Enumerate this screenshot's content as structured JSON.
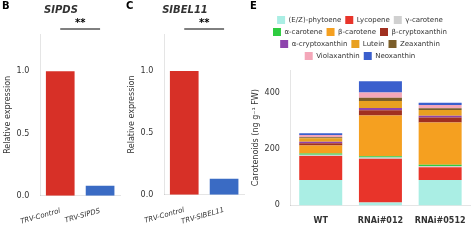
{
  "chart_data": [
    {
      "type": "bar",
      "title": "SIPDS",
      "categories": [
        "TRV-Control",
        "TRV-SIPDS"
      ],
      "values": [
        1.0,
        0.08
      ],
      "colors": [
        "#d73027",
        "#3a6bc4"
      ],
      "ylabel": "Relative expression",
      "ylim": [
        0,
        1.3
      ],
      "yticks": [
        {
          "value": 0,
          "label": "0.0"
        },
        0.5,
        {
          "value": 1,
          "label": "1.0"
        }
      ],
      "grid": false,
      "annotations": [
        "B",
        "**"
      ]
    },
    {
      "type": "bar",
      "title": "SIBEL11",
      "categories": [
        "TRV-Control",
        "TRV-SIBEL11"
      ],
      "values": [
        1.0,
        0.13
      ],
      "colors": [
        "#d73027",
        "#3a6bc4"
      ],
      "ylabel": "Relative expression",
      "ylim": [
        0,
        1.3
      ],
      "yticks": [
        {
          "value": 0,
          "label": "0.0"
        },
        0.5,
        {
          "value": 1,
          "label": "1.0"
        }
      ],
      "grid": false,
      "annotations": [
        "C",
        "**"
      ]
    },
    {
      "type": "bar",
      "stacked": true,
      "categories": [
        "WT",
        "RNAi#012",
        "RNAi#0512"
      ],
      "ylabel": "Carotenoids (ng g⁻¹ FW)",
      "ylim": [
        0,
        480
      ],
      "yticks": [
        0,
        200,
        400
      ],
      "grid": false,
      "legend": "top",
      "series": [
        {
          "name": "(E/Z)-phytoene",
          "color": "#aaeee4",
          "values": [
            90,
            10,
            90
          ]
        },
        {
          "name": "Lycopene",
          "color": "#e8342a",
          "values": [
            85,
            155,
            45
          ]
        },
        {
          "name": "γ-carotene",
          "color": "#d0d0d0",
          "values": [
            5,
            5,
            5
          ]
        },
        {
          "name": "α-carotene",
          "color": "#2ecc40",
          "values": [
            4,
            4,
            4
          ]
        },
        {
          "name": "β-carotene",
          "color": "#f5a020",
          "values": [
            28,
            145,
            150
          ]
        },
        {
          "name": "β-cryptoxanthin",
          "color": "#a03020",
          "values": [
            8,
            18,
            18
          ]
        },
        {
          "name": "α-cryptoxanthin",
          "color": "#8e44ad",
          "values": [
            6,
            8,
            6
          ]
        },
        {
          "name": "Lutein",
          "color": "#e8a020",
          "values": [
            12,
            25,
            20
          ]
        },
        {
          "name": "Zeaxanthin",
          "color": "#7b5e2a",
          "values": [
            4,
            12,
            6
          ]
        },
        {
          "name": "Violaxanthin",
          "color": "#f4a7b9",
          "values": [
            8,
            18,
            12
          ]
        },
        {
          "name": "Neoxanthin",
          "color": "#3a5fcd",
          "values": [
            6,
            40,
            8
          ]
        }
      ],
      "annotations": [
        "E"
      ]
    }
  ]
}
